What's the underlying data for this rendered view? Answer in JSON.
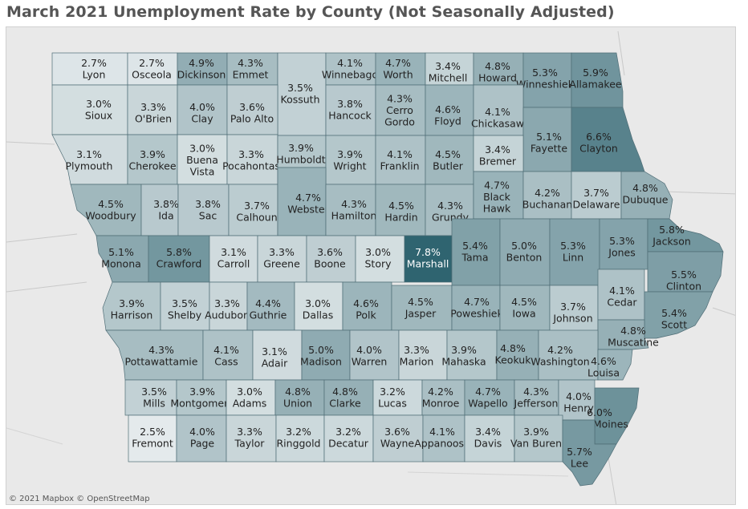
{
  "title": "March 2021 Unemployment Rate by County (Not Seasonally Adjusted)",
  "attribution": "© 2021 Mapbox  © OpenStreetMap",
  "color_scale": {
    "low": "#f4f6f7",
    "high": "#2f6470",
    "min_value": 2.5,
    "max_value": 7.8
  },
  "counties": [
    {
      "name": "Lyon",
      "rate": "2.7%"
    },
    {
      "name": "Osceola",
      "rate": "2.7%"
    },
    {
      "name": "Dickinson",
      "rate": "4.9%"
    },
    {
      "name": "Emmet",
      "rate": "4.3%"
    },
    {
      "name": "Kossuth",
      "rate": "3.5%"
    },
    {
      "name": "Winnebago",
      "rate": "4.1%"
    },
    {
      "name": "Worth",
      "rate": "4.7%"
    },
    {
      "name": "Mitchell",
      "rate": "3.4%"
    },
    {
      "name": "Howard",
      "rate": "4.8%"
    },
    {
      "name": "Winneshiek",
      "rate": "5.3%"
    },
    {
      "name": "Allamakee",
      "rate": "5.9%"
    },
    {
      "name": "Sioux",
      "rate": "3.0%"
    },
    {
      "name": "O'Brien",
      "rate": "3.3%"
    },
    {
      "name": "Clay",
      "rate": "4.0%"
    },
    {
      "name": "Palo Alto",
      "rate": "3.6%"
    },
    {
      "name": "Hancock",
      "rate": "3.8%"
    },
    {
      "name": "Cerro Gordo",
      "rate": "4.3%"
    },
    {
      "name": "Floyd",
      "rate": "4.6%"
    },
    {
      "name": "Chickasaw",
      "rate": "4.1%"
    },
    {
      "name": "Fayette",
      "rate": "5.1%"
    },
    {
      "name": "Clayton",
      "rate": "6.6%"
    },
    {
      "name": "Plymouth",
      "rate": "3.1%"
    },
    {
      "name": "Cherokee",
      "rate": "3.9%"
    },
    {
      "name": "Buena Vista",
      "rate": "3.0%"
    },
    {
      "name": "Pocahontas",
      "rate": "3.3%"
    },
    {
      "name": "Humboldt",
      "rate": "3.9%"
    },
    {
      "name": "Wright",
      "rate": "3.9%"
    },
    {
      "name": "Franklin",
      "rate": "4.1%"
    },
    {
      "name": "Butler",
      "rate": "4.5%"
    },
    {
      "name": "Bremer",
      "rate": "3.4%"
    },
    {
      "name": "Woodbury",
      "rate": "4.5%"
    },
    {
      "name": "Ida",
      "rate": "3.8%"
    },
    {
      "name": "Sac",
      "rate": "3.8%"
    },
    {
      "name": "Calhoun",
      "rate": "3.7%"
    },
    {
      "name": "Webster",
      "rate": "4.7%"
    },
    {
      "name": "Hamilton",
      "rate": "4.3%"
    },
    {
      "name": "Hardin",
      "rate": "4.5%"
    },
    {
      "name": "Grundy",
      "rate": "4.3%"
    },
    {
      "name": "Black Hawk",
      "rate": "4.7%"
    },
    {
      "name": "Buchanan",
      "rate": "4.2%"
    },
    {
      "name": "Delaware",
      "rate": "3.7%"
    },
    {
      "name": "Dubuque",
      "rate": "4.8%"
    },
    {
      "name": "Monona",
      "rate": "5.1%"
    },
    {
      "name": "Crawford",
      "rate": "5.8%"
    },
    {
      "name": "Carroll",
      "rate": "3.1%"
    },
    {
      "name": "Greene",
      "rate": "3.3%"
    },
    {
      "name": "Boone",
      "rate": "3.6%"
    },
    {
      "name": "Story",
      "rate": "3.0%"
    },
    {
      "name": "Marshall",
      "rate": "7.8%"
    },
    {
      "name": "Tama",
      "rate": "5.4%"
    },
    {
      "name": "Benton",
      "rate": "5.0%"
    },
    {
      "name": "Linn",
      "rate": "5.3%"
    },
    {
      "name": "Jones",
      "rate": "5.3%"
    },
    {
      "name": "Jackson",
      "rate": "5.8%"
    },
    {
      "name": "Clinton",
      "rate": "5.5%"
    },
    {
      "name": "Harrison",
      "rate": "3.9%"
    },
    {
      "name": "Shelby",
      "rate": "3.5%"
    },
    {
      "name": "Audubon",
      "rate": "3.3%"
    },
    {
      "name": "Guthrie",
      "rate": "4.4%"
    },
    {
      "name": "Dallas",
      "rate": "3.0%"
    },
    {
      "name": "Polk",
      "rate": "4.6%"
    },
    {
      "name": "Jasper",
      "rate": "4.5%"
    },
    {
      "name": "Poweshiek",
      "rate": "4.7%"
    },
    {
      "name": "Iowa",
      "rate": "4.5%"
    },
    {
      "name": "Johnson",
      "rate": "3.7%"
    },
    {
      "name": "Cedar",
      "rate": "4.1%"
    },
    {
      "name": "Scott",
      "rate": "5.4%"
    },
    {
      "name": "Muscatine",
      "rate": "4.8%"
    },
    {
      "name": "Pottawattamie",
      "rate": "4.3%"
    },
    {
      "name": "Cass",
      "rate": "4.1%"
    },
    {
      "name": "Adair",
      "rate": "3.1%"
    },
    {
      "name": "Madison",
      "rate": "5.0%"
    },
    {
      "name": "Warren",
      "rate": "4.0%"
    },
    {
      "name": "Marion",
      "rate": "3.3%"
    },
    {
      "name": "Mahaska",
      "rate": "3.9%"
    },
    {
      "name": "Keokuk",
      "rate": "4.8%"
    },
    {
      "name": "Washington",
      "rate": "4.2%"
    },
    {
      "name": "Louisa",
      "rate": "4.6%"
    },
    {
      "name": "Mills",
      "rate": "3.5%"
    },
    {
      "name": "Montgomery",
      "rate": "3.9%"
    },
    {
      "name": "Adams",
      "rate": "3.0%"
    },
    {
      "name": "Union",
      "rate": "4.8%"
    },
    {
      "name": "Clarke",
      "rate": "4.8%"
    },
    {
      "name": "Lucas",
      "rate": "3.2%"
    },
    {
      "name": "Monroe",
      "rate": "4.2%"
    },
    {
      "name": "Wapello",
      "rate": "4.7%"
    },
    {
      "name": "Jefferson",
      "rate": "4.3%"
    },
    {
      "name": "Henry",
      "rate": "4.0%"
    },
    {
      "name": "Des Moines",
      "rate": "6.0%"
    },
    {
      "name": "Fremont",
      "rate": "2.5%"
    },
    {
      "name": "Page",
      "rate": "4.0%"
    },
    {
      "name": "Taylor",
      "rate": "3.3%"
    },
    {
      "name": "Ringgold",
      "rate": "3.2%"
    },
    {
      "name": "Decatur",
      "rate": "3.2%"
    },
    {
      "name": "Wayne",
      "rate": "3.6%"
    },
    {
      "name": "Appanoose",
      "rate": "4.1%"
    },
    {
      "name": "Davis",
      "rate": "3.4%"
    },
    {
      "name": "Van Buren",
      "rate": "3.9%"
    },
    {
      "name": "Lee",
      "rate": "5.7%"
    }
  ]
}
